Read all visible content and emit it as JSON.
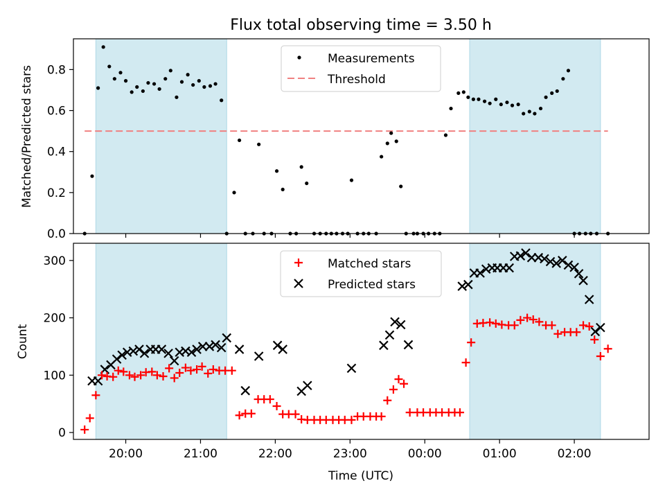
{
  "title": "Flux total observing time = 3.50 h",
  "colors": {
    "shade": "#add8e6",
    "threshold": "#f08080",
    "matched": "#ff0000",
    "predicted": "#000000",
    "measurement": "#000000"
  },
  "chart_data": [
    {
      "type": "scatter",
      "ylabel": "Matched/Predicted stars",
      "xlim": [
        19.3,
        27.0
      ],
      "ylim": [
        0,
        0.95
      ],
      "yticks": [
        "0.0",
        "0.2",
        "0.4",
        "0.6",
        "0.8"
      ],
      "ytick_values": [
        0,
        0.2,
        0.4,
        0.6,
        0.8
      ],
      "shaded_regions": [
        [
          19.6,
          21.35
        ],
        [
          24.6,
          26.35
        ]
      ],
      "threshold": {
        "value": 0.5,
        "x_range": [
          19.45,
          26.45
        ]
      },
      "legend": {
        "position": "top-center",
        "entries": [
          "Measurements",
          "Threshold"
        ]
      },
      "series": [
        {
          "name": "Measurements",
          "x": [
            19.45,
            19.55,
            19.63,
            19.7,
            19.78,
            19.85,
            19.93,
            20.0,
            20.08,
            20.15,
            20.23,
            20.3,
            20.38,
            20.45,
            20.53,
            20.6,
            20.68,
            20.75,
            20.83,
            20.9,
            20.98,
            21.05,
            21.13,
            21.2,
            21.28,
            21.35,
            21.45,
            21.52,
            21.6,
            21.7,
            21.78,
            21.85,
            21.95,
            22.02,
            22.1,
            22.2,
            22.28,
            22.35,
            22.42,
            22.52,
            22.6,
            22.68,
            22.75,
            22.82,
            22.9,
            22.97,
            23.02,
            23.1,
            23.18,
            23.25,
            23.35,
            23.42,
            23.5,
            23.55,
            23.62,
            23.68,
            23.75,
            23.85,
            23.9,
            23.98,
            24.05,
            24.13,
            24.2,
            24.28,
            24.35,
            24.45,
            24.52,
            24.58,
            24.65,
            24.72,
            24.8,
            24.87,
            24.95,
            25.02,
            25.1,
            25.17,
            25.25,
            25.32,
            25.4,
            25.47,
            25.55,
            25.62,
            25.7,
            25.77,
            25.85,
            25.92,
            26.0,
            26.07,
            26.15,
            26.22,
            26.3,
            26.45
          ],
          "y": [
            0.0,
            0.28,
            0.71,
            0.91,
            0.815,
            0.755,
            0.785,
            0.745,
            0.69,
            0.715,
            0.695,
            0.735,
            0.73,
            0.705,
            0.755,
            0.795,
            0.665,
            0.74,
            0.775,
            0.725,
            0.745,
            0.715,
            0.72,
            0.73,
            0.65,
            0.0,
            0.2,
            0.455,
            0.0,
            0.0,
            0.435,
            0.0,
            0.0,
            0.305,
            0.215,
            0.0,
            0.0,
            0.325,
            0.245,
            0.0,
            0.0,
            0.0,
            0.0,
            0.0,
            0.0,
            0.0,
            0.26,
            0.0,
            0.0,
            0.0,
            0.0,
            0.375,
            0.44,
            0.49,
            0.45,
            0.23,
            0.0,
            0.0,
            0.0,
            0.0,
            0.0,
            0.0,
            0.0,
            0.48,
            0.61,
            0.685,
            0.69,
            0.665,
            0.655,
            0.655,
            0.645,
            0.635,
            0.655,
            0.63,
            0.64,
            0.625,
            0.63,
            0.585,
            0.595,
            0.585,
            0.61,
            0.665,
            0.685,
            0.695,
            0.755,
            0.795,
            0.0,
            0.0,
            0.0,
            0.0,
            0.0,
            0.0
          ]
        }
      ]
    },
    {
      "type": "scatter",
      "xlabel": "Time (UTC)",
      "ylabel": "Count",
      "xlim": [
        19.3,
        27.0
      ],
      "ylim": [
        -12,
        330
      ],
      "yticks": [
        "0",
        "100",
        "200",
        "300"
      ],
      "ytick_values": [
        0,
        100,
        200,
        300
      ],
      "xticks": [
        "20:00",
        "21:00",
        "22:00",
        "23:00",
        "00:00",
        "01:00",
        "02:00"
      ],
      "xtick_values": [
        20,
        21,
        22,
        23,
        24,
        25,
        26
      ],
      "shaded_regions": [
        [
          19.6,
          21.35
        ],
        [
          24.6,
          26.35
        ]
      ],
      "legend": {
        "position": "top-center",
        "entries": [
          "Matched stars",
          "Predicted stars"
        ]
      },
      "series": [
        {
          "name": "Matched stars",
          "x": [
            19.45,
            19.52,
            19.6,
            19.68,
            19.75,
            19.83,
            19.9,
            19.97,
            20.05,
            20.12,
            20.2,
            20.27,
            20.35,
            20.42,
            20.5,
            20.58,
            20.65,
            20.72,
            20.8,
            20.87,
            20.95,
            21.02,
            21.1,
            21.17,
            21.25,
            21.33,
            21.42,
            21.52,
            21.6,
            21.68,
            21.77,
            21.85,
            21.93,
            22.02,
            22.1,
            22.18,
            22.27,
            22.35,
            22.43,
            22.52,
            22.6,
            22.68,
            22.77,
            22.85,
            22.93,
            23.02,
            23.1,
            23.18,
            23.27,
            23.35,
            23.42,
            23.5,
            23.58,
            23.65,
            23.72,
            23.8,
            23.9,
            23.98,
            24.07,
            24.15,
            24.23,
            24.32,
            24.4,
            24.47,
            24.55,
            24.62,
            24.7,
            24.78,
            24.87,
            24.95,
            25.03,
            25.12,
            25.2,
            25.28,
            25.37,
            25.45,
            25.53,
            25.62,
            25.7,
            25.78,
            25.87,
            25.95,
            26.03,
            26.12,
            26.2,
            26.27,
            26.35,
            26.45
          ],
          "y": [
            5,
            25,
            65,
            100,
            98,
            97,
            108,
            106,
            100,
            97,
            100,
            105,
            106,
            100,
            98,
            112,
            95,
            104,
            113,
            108,
            110,
            115,
            103,
            110,
            108,
            108,
            108,
            30,
            33,
            33,
            58,
            58,
            58,
            46,
            32,
            32,
            32,
            23,
            22,
            22,
            22,
            22,
            22,
            22,
            22,
            22,
            28,
            28,
            28,
            28,
            28,
            56,
            75,
            93,
            85,
            35,
            35,
            35,
            35,
            35,
            35,
            35,
            35,
            35,
            122,
            157,
            190,
            191,
            192,
            190,
            188,
            187,
            187,
            196,
            200,
            197,
            193,
            187,
            187,
            172,
            175,
            175,
            175,
            187,
            185,
            162,
            133,
            146
          ]
        },
        {
          "name": "Predicted stars",
          "x": [
            19.55,
            19.63,
            19.72,
            19.8,
            19.88,
            19.95,
            20.02,
            20.1,
            20.18,
            20.25,
            20.33,
            20.4,
            20.48,
            20.57,
            20.65,
            20.72,
            20.8,
            20.88,
            20.95,
            21.03,
            21.12,
            21.2,
            21.28,
            21.35,
            21.52,
            21.6,
            21.78,
            22.03,
            22.1,
            22.35,
            22.43,
            23.02,
            23.45,
            23.53,
            23.6,
            23.68,
            23.78,
            24.5,
            24.58,
            24.66,
            24.74,
            24.82,
            24.9,
            24.97,
            25.05,
            25.13,
            25.2,
            25.28,
            25.35,
            25.43,
            25.52,
            25.6,
            25.68,
            25.76,
            25.84,
            25.92,
            26.0,
            26.06,
            26.12,
            26.2,
            26.28,
            26.35
          ],
          "y": [
            90,
            90,
            110,
            118,
            128,
            135,
            140,
            142,
            145,
            138,
            145,
            145,
            145,
            138,
            125,
            140,
            142,
            140,
            145,
            150,
            150,
            153,
            148,
            165,
            145,
            73,
            133,
            152,
            145,
            72,
            82,
            112,
            152,
            170,
            193,
            188,
            153,
            255,
            258,
            278,
            278,
            285,
            287,
            287,
            287,
            287,
            307,
            308,
            313,
            305,
            305,
            303,
            298,
            295,
            300,
            292,
            288,
            277,
            265,
            232,
            176,
            183
          ]
        }
      ]
    }
  ]
}
